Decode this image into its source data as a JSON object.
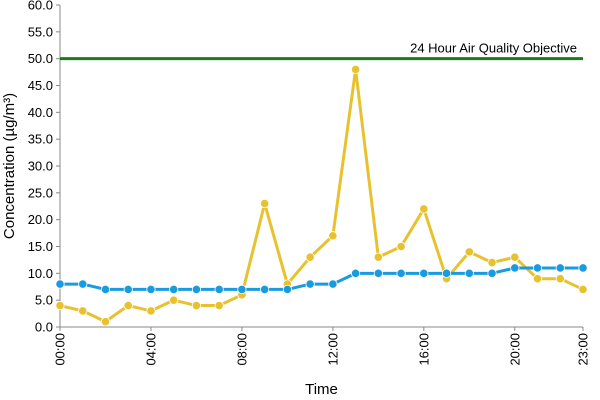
{
  "chart_data": {
    "type": "line",
    "title": "",
    "xlabel": "Time",
    "ylabel": "Concentration (µg/m³)",
    "ylim": [
      0,
      60
    ],
    "y_ticks": [
      "0.0",
      "5.0",
      "10.0",
      "15.0",
      "20.0",
      "25.0",
      "30.0",
      "35.0",
      "40.0",
      "45.0",
      "50.0",
      "55.0",
      "60.0"
    ],
    "x": [
      0,
      1,
      2,
      3,
      4,
      5,
      6,
      7,
      8,
      9,
      10,
      11,
      12,
      13,
      14,
      15,
      16,
      17,
      18,
      19,
      20,
      21,
      22,
      23
    ],
    "x_tick_labels": [
      "00:00",
      "04:00",
      "08:00",
      "12:00",
      "16:00",
      "20:00",
      "23:00"
    ],
    "x_tick_positions": [
      0,
      4,
      8,
      12,
      16,
      20,
      23
    ],
    "grid": false,
    "reference_line": {
      "value": 50,
      "label": "24 Hour Air Quality Objective",
      "color": "#1e7a1e"
    },
    "series": [
      {
        "color": "#e8c22e",
        "values": [
          4,
          3,
          1,
          4,
          3,
          5,
          4,
          4,
          6,
          23,
          8,
          13,
          17,
          48,
          13,
          15,
          22,
          9,
          14,
          12,
          13,
          9,
          9,
          7
        ]
      },
      {
        "color": "#1a9be0",
        "values": [
          8,
          8,
          7,
          7,
          7,
          7,
          7,
          7,
          7,
          7,
          7,
          8,
          8,
          10,
          10,
          10,
          10,
          10,
          10,
          10,
          11,
          11,
          11,
          11
        ]
      }
    ]
  }
}
